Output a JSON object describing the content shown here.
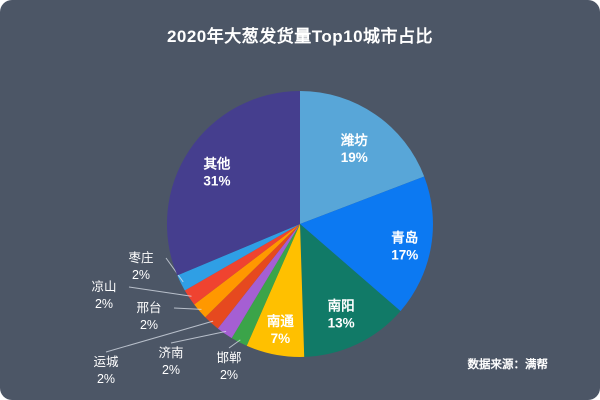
{
  "chart_data": {
    "type": "pie",
    "title": "2020年大葱发货量Top10城市占比",
    "source": "数据来源：满帮",
    "background": "#4c5666",
    "center": [
      300,
      224
    ],
    "radius": 133,
    "start_angle_deg": 0,
    "legend": "none",
    "slices": [
      {
        "name": "潍坊",
        "value": 19,
        "percent_label": "19%",
        "color": "#58a6d8",
        "label": "inside",
        "label_r": 0.72
      },
      {
        "name": "青岛",
        "value": 17,
        "percent_label": "17%",
        "color": "#0c79f2",
        "label": "inside",
        "label_r": 0.8
      },
      {
        "name": "南阳",
        "value": 13,
        "percent_label": "13%",
        "color": "#117a67",
        "label": "inside",
        "label_r": 0.72
      },
      {
        "name": "南通",
        "value": 7,
        "percent_label": "7%",
        "color": "#ffc000",
        "label": "inside",
        "label_r": 0.78
      },
      {
        "name": "邯郸",
        "value": 2,
        "percent_label": "2%",
        "color": "#3ba449",
        "label": "outside",
        "label_pos": [
          229,
          362
        ]
      },
      {
        "name": "济南",
        "value": 2,
        "percent_label": "2%",
        "color": "#a55fd3",
        "label": "outside",
        "label_pos": [
          171,
          357
        ]
      },
      {
        "name": "运城",
        "value": 2,
        "percent_label": "2%",
        "color": "#e6491f",
        "label": "outside",
        "label_pos": [
          106,
          366
        ]
      },
      {
        "name": "邢台",
        "value": 2,
        "percent_label": "2%",
        "color": "#ff9800",
        "label": "outside",
        "label_pos": [
          149,
          312
        ]
      },
      {
        "name": "凉山",
        "value": 2,
        "percent_label": "2%",
        "color": "#ef4330",
        "label": "outside",
        "label_pos": [
          104,
          291
        ]
      },
      {
        "name": "枣庄",
        "value": 2,
        "percent_label": "2%",
        "color": "#2f9fe5",
        "label": "outside",
        "label_pos": [
          141,
          262
        ]
      },
      {
        "name": "其他",
        "value": 31,
        "percent_label": "31%",
        "color": "#453e8e",
        "label": "inside",
        "label_r": 0.75
      }
    ]
  }
}
